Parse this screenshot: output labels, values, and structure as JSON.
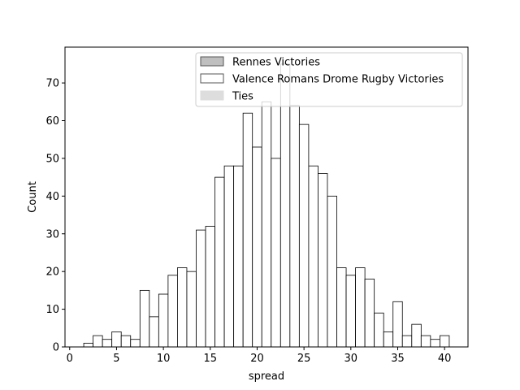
{
  "chart_data": {
    "type": "bar",
    "subtype": "histogram",
    "xlabel": "spread",
    "ylabel": "Count",
    "xlim": [
      -0.5,
      42.5
    ],
    "ylim": [
      0,
      79.5
    ],
    "xticks": [
      0,
      5,
      10,
      15,
      20,
      25,
      30,
      35,
      40
    ],
    "yticks": [
      0,
      10,
      20,
      30,
      40,
      50,
      60,
      70
    ],
    "bin_width": 1,
    "bins": [
      {
        "x": 2,
        "count": 1
      },
      {
        "x": 3,
        "count": 3
      },
      {
        "x": 4,
        "count": 2
      },
      {
        "x": 5,
        "count": 4
      },
      {
        "x": 6,
        "count": 3
      },
      {
        "x": 7,
        "count": 2
      },
      {
        "x": 8,
        "count": 15
      },
      {
        "x": 9,
        "count": 8
      },
      {
        "x": 10,
        "count": 14
      },
      {
        "x": 11,
        "count": 19
      },
      {
        "x": 12,
        "count": 21
      },
      {
        "x": 13,
        "count": 20
      },
      {
        "x": 14,
        "count": 31
      },
      {
        "x": 15,
        "count": 32
      },
      {
        "x": 16,
        "count": 45
      },
      {
        "x": 17,
        "count": 48
      },
      {
        "x": 18,
        "count": 48
      },
      {
        "x": 19,
        "count": 62
      },
      {
        "x": 20,
        "count": 53
      },
      {
        "x": 21,
        "count": 65
      },
      {
        "x": 22,
        "count": 50
      },
      {
        "x": 23,
        "count": 75
      },
      {
        "x": 24,
        "count": 64
      },
      {
        "x": 25,
        "count": 59
      },
      {
        "x": 26,
        "count": 48
      },
      {
        "x": 27,
        "count": 46
      },
      {
        "x": 28,
        "count": 40
      },
      {
        "x": 29,
        "count": 21
      },
      {
        "x": 30,
        "count": 19
      },
      {
        "x": 31,
        "count": 21
      },
      {
        "x": 32,
        "count": 18
      },
      {
        "x": 33,
        "count": 9
      },
      {
        "x": 34,
        "count": 4
      },
      {
        "x": 35,
        "count": 12
      },
      {
        "x": 36,
        "count": 3
      },
      {
        "x": 37,
        "count": 6
      },
      {
        "x": 38,
        "count": 3
      },
      {
        "x": 39,
        "count": 2
      },
      {
        "x": 40,
        "count": 3
      }
    ],
    "legend": {
      "placement": "top-right",
      "entries": [
        {
          "label": "Rennes Victories",
          "fill": "#bfbfbf",
          "edge": "#555555"
        },
        {
          "label": "Valence Romans Drome Rugby Victories",
          "fill": "#ffffff",
          "edge": "#555555"
        },
        {
          "label": "Ties",
          "fill": "#dddddd",
          "edge": "#dddddd"
        }
      ]
    },
    "grid": false,
    "bar_fill": "#ffffff",
    "bar_edge": "#000000"
  }
}
